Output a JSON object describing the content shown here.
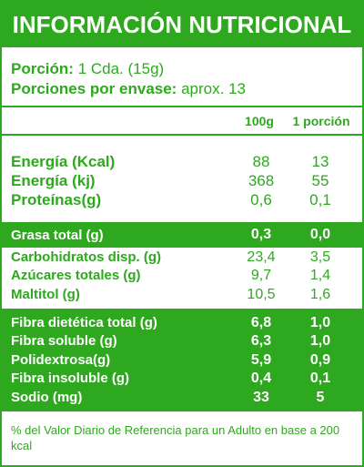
{
  "title": "INFORMACIÓN NUTRICIONAL",
  "serving": {
    "portion_label": "Porción:",
    "portion_value": "1 Cda. (15g)",
    "per_pack_label": "Porciones por envase:",
    "per_pack_value": "aprox. 13"
  },
  "columns": {
    "c1": "100g",
    "c2": "1 porción"
  },
  "main_rows": [
    {
      "label": "Energía (Kcal)",
      "v1": "88",
      "v2": "13"
    },
    {
      "label": "Energía (kj)",
      "v1": "368",
      "v2": "55"
    },
    {
      "label": "Proteínas(g)",
      "v1": "0,6",
      "v2": "0,1"
    }
  ],
  "fat_row": {
    "label": "Grasa total (g)",
    "v1": "0,3",
    "v2": "0,0"
  },
  "carb_rows": [
    {
      "label": "Carbohidratos disp. (g)",
      "v1": "23,4",
      "v2": "3,5"
    },
    {
      "label": "Azúcares totales (g)",
      "v1": "9,7",
      "v2": "1,4"
    },
    {
      "label": "Maltitol (g)",
      "v1": "10,5",
      "v2": "1,6"
    }
  ],
  "fiber_rows": [
    {
      "label": "Fibra dietética total (g)",
      "v1": "6,8",
      "v2": "1,0"
    },
    {
      "label": "Fibra soluble (g)",
      "v1": "6,3",
      "v2": "1,0"
    },
    {
      "label": "Polidextrosa(g)",
      "v1": "5,9",
      "v2": "0,9"
    },
    {
      "label": "Fibra insoluble (g)",
      "v1": "0,4",
      "v2": "0,1"
    },
    {
      "label": "Sodio (mg)",
      "v1": "33",
      "v2": "5"
    }
  ],
  "footnote": "% del Valor Diario de Referencia para un Adulto en base a 200 kcal",
  "colors": {
    "green": "#2ea81e",
    "white": "#ffffff"
  }
}
